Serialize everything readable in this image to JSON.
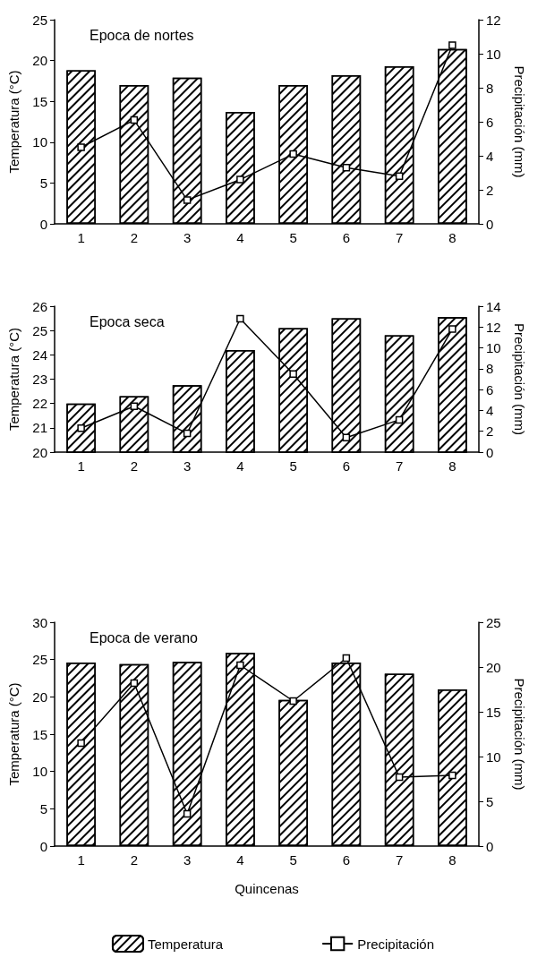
{
  "chart_data": [
    {
      "type": "bar",
      "title": "Epoca de nortes",
      "ylabel": "Temperatura (°C)",
      "y2label": "Precipitación (mm)",
      "categories": [
        "1",
        "2",
        "3",
        "4",
        "5",
        "6",
        "7",
        "8"
      ],
      "series": [
        {
          "color": "#ffffff",
          "values": [
            18.8,
            17.0,
            17.9,
            13.7,
            17.0,
            18.2,
            19.3,
            21.4
          ]
        },
        {
          "type": "line",
          "axis": "y2",
          "color": "#000000",
          "marker": "square",
          "values": [
            4.5,
            6.1,
            1.4,
            2.6,
            4.1,
            3.3,
            2.8,
            10.5
          ]
        }
      ],
      "ylim": [
        0,
        25
      ],
      "yticks": [
        0,
        5,
        10,
        15,
        20,
        25
      ],
      "y2lim": [
        0,
        12
      ],
      "y2ticks": [
        0,
        2,
        4,
        6,
        8,
        10,
        12
      ],
      "grid": false,
      "legend": false
    },
    {
      "type": "bar",
      "title": "Epoca seca",
      "ylabel": "Temperatura (°C)",
      "y2label": "Precipitación (mm)",
      "categories": [
        "1",
        "2",
        "3",
        "4",
        "5",
        "6",
        "7",
        "8"
      ],
      "series": [
        {
          "color": "#ffffff",
          "values": [
            22.0,
            22.3,
            22.75,
            24.2,
            25.1,
            25.5,
            24.8,
            25.55
          ]
        },
        {
          "type": "line",
          "axis": "y2",
          "color": "#000000",
          "marker": "square",
          "values": [
            2.3,
            4.4,
            1.8,
            12.8,
            7.5,
            1.4,
            3.1,
            11.8
          ]
        }
      ],
      "ylim": [
        20,
        26
      ],
      "yticks": [
        20,
        21,
        22,
        23,
        24,
        25,
        26
      ],
      "y2lim": [
        0,
        14
      ],
      "y2ticks": [
        0,
        2,
        4,
        6,
        8,
        10,
        12,
        14
      ],
      "grid": false,
      "legend": false
    },
    {
      "type": "bar",
      "title": "Epoca de verano",
      "xlabel": "Quincenas",
      "ylabel": "Temperatura (°C)",
      "y2label": "Precipitación (mm)",
      "categories": [
        "1",
        "2",
        "3",
        "4",
        "5",
        "6",
        "7",
        "8"
      ],
      "series": [
        {
          "name": "Temperatura",
          "color": "#ffffff",
          "values": [
            24.6,
            24.4,
            24.7,
            25.9,
            19.6,
            24.6,
            23.1,
            21.0
          ]
        },
        {
          "type": "line",
          "name": "Precipitación",
          "axis": "y2",
          "color": "#000000",
          "marker": "square",
          "values": [
            11.5,
            18.2,
            3.6,
            20.2,
            16.2,
            21.0,
            7.7,
            7.9
          ]
        }
      ],
      "ylim": [
        0,
        30
      ],
      "yticks": [
        0,
        5,
        10,
        15,
        20,
        25,
        30
      ],
      "y2lim": [
        0,
        25
      ],
      "y2ticks": [
        0,
        5,
        10,
        15,
        20,
        25
      ],
      "grid": false,
      "legend": "bottom"
    }
  ]
}
